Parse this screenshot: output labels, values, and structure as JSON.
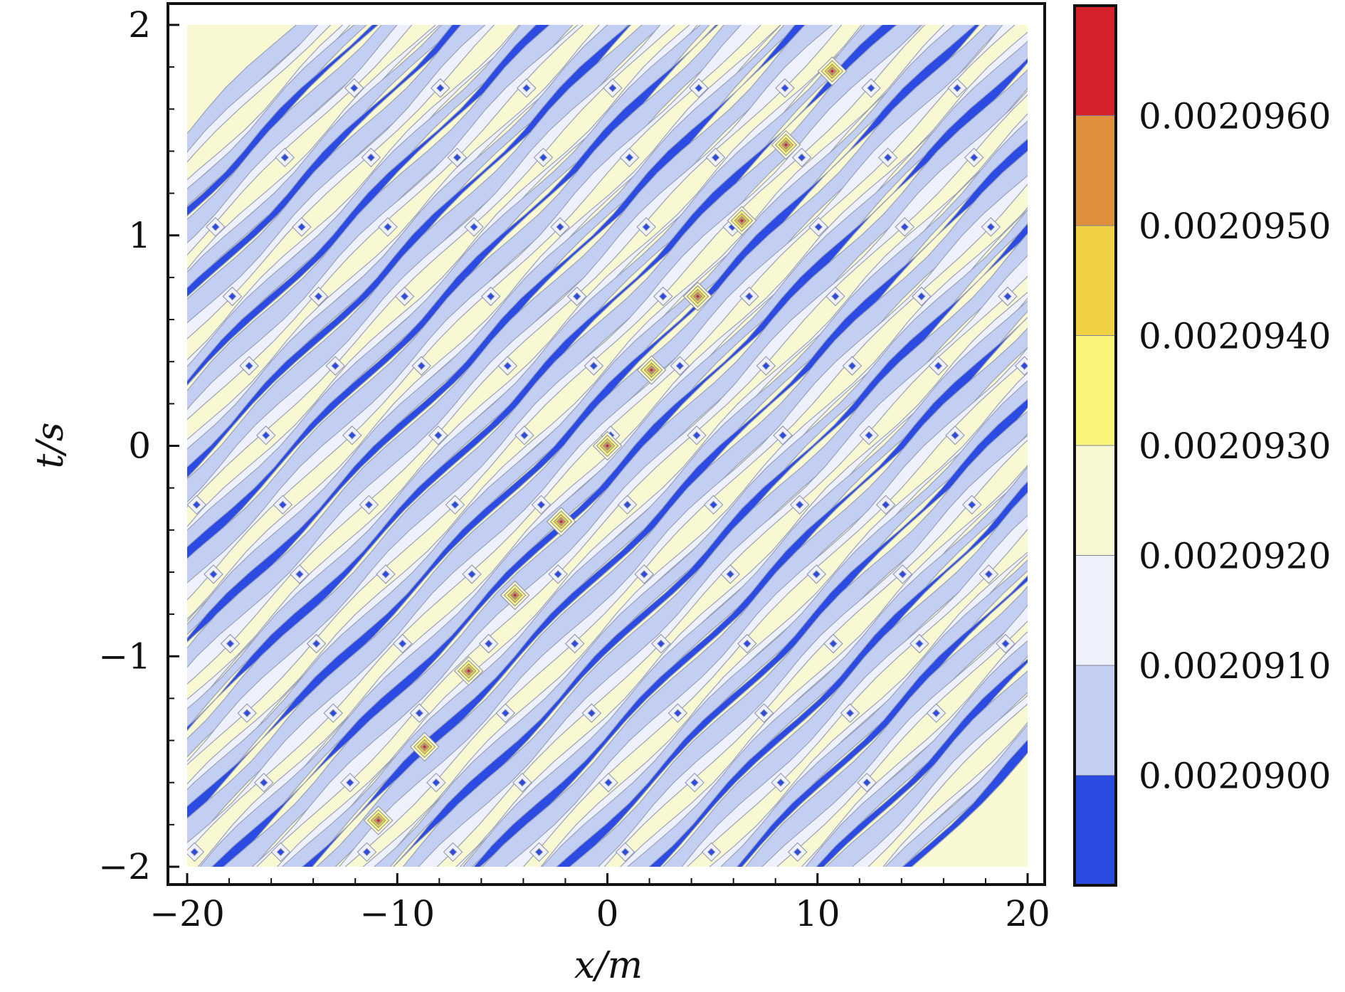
{
  "chart_data": {
    "type": "heatmap",
    "subtype": "filled-contour",
    "title": "",
    "xlabel": "x/m",
    "ylabel": "t/s",
    "xlim": [
      -20,
      20
    ],
    "ylim": [
      -2,
      2
    ],
    "xticks": [
      -20,
      -10,
      0,
      10,
      20
    ],
    "xtick_labels": [
      "−20",
      "−10",
      "0",
      "10",
      "20"
    ],
    "yticks": [
      -2,
      -1,
      0,
      1,
      2
    ],
    "ytick_labels": [
      "−2",
      "−1",
      "0",
      "1",
      "2"
    ],
    "grid": false,
    "pattern": {
      "band_direction": "diagonal, lower-left to upper-right",
      "band_slope_x_per_t": 10.0,
      "band_period_x": 4.1
    },
    "peaks": [
      {
        "x": -10.9,
        "t": -1.78,
        "level": "max"
      },
      {
        "x": -8.7,
        "t": -1.43,
        "level": "max"
      },
      {
        "x": -6.6,
        "t": -1.07,
        "level": "max"
      },
      {
        "x": -4.4,
        "t": -0.71,
        "level": "max"
      },
      {
        "x": -2.2,
        "t": -0.36,
        "level": "max"
      },
      {
        "x": 0.0,
        "t": 0.0,
        "level": "max"
      },
      {
        "x": 2.1,
        "t": 0.36,
        "level": "max"
      },
      {
        "x": 4.3,
        "t": 0.71,
        "level": "max"
      },
      {
        "x": 6.4,
        "t": 1.07,
        "level": "max"
      },
      {
        "x": 8.5,
        "t": 1.43,
        "level": "max"
      },
      {
        "x": 10.7,
        "t": 1.78,
        "level": "max"
      }
    ],
    "colorbar": {
      "levels": [
        "0.0020900",
        "0.0020910",
        "0.0020920",
        "0.0020930",
        "0.0020940",
        "0.0020950",
        "0.0020960"
      ],
      "colors": [
        "#2b4be3",
        "#c3cff2",
        "#eef1fb",
        "#f8f8d2",
        "#f9f57a",
        "#f0d144",
        "#e0903c",
        "#d6232b"
      ]
    }
  }
}
